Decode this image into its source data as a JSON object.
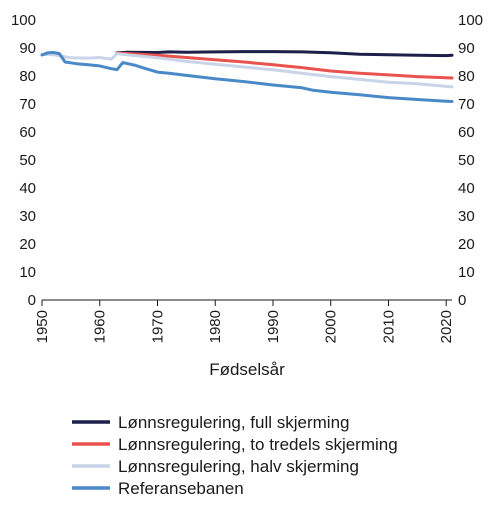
{
  "chart_data": {
    "type": "line",
    "title": "",
    "xlabel": "Fødselsår",
    "ylabel": "",
    "xlim": [
      1950,
      2021
    ],
    "ylim": [
      0,
      100
    ],
    "x_ticks": [
      1950,
      1960,
      1970,
      1980,
      1990,
      2000,
      2010,
      2020
    ],
    "y_ticks": [
      0,
      10,
      20,
      30,
      40,
      50,
      60,
      70,
      80,
      90,
      100
    ],
    "y_ticks_right": true,
    "grid": false,
    "legend_position": "bottom",
    "series": [
      {
        "name": "Lønnsregulering, full skjerming",
        "color": "#1b1f4a",
        "points": [
          [
            1963,
            88.3
          ],
          [
            1965,
            88.5
          ],
          [
            1970,
            88.4
          ],
          [
            1972,
            88.6
          ],
          [
            1975,
            88.5
          ],
          [
            1980,
            88.6
          ],
          [
            1985,
            88.7
          ],
          [
            1990,
            88.7
          ],
          [
            1995,
            88.6
          ],
          [
            2000,
            88.3
          ],
          [
            2005,
            87.8
          ],
          [
            2010,
            87.6
          ],
          [
            2015,
            87.4
          ],
          [
            2020,
            87.3
          ],
          [
            2021,
            87.4
          ]
        ]
      },
      {
        "name": "Lønnsregulering, to tredels skjerming",
        "color": "#e8534f",
        "points": [
          [
            1963,
            88.2
          ],
          [
            1965,
            88.0
          ],
          [
            1970,
            87.4
          ],
          [
            1975,
            86.6
          ],
          [
            1980,
            85.8
          ],
          [
            1985,
            85.0
          ],
          [
            1990,
            84.0
          ],
          [
            1995,
            83.0
          ],
          [
            2000,
            81.8
          ],
          [
            2005,
            81.0
          ],
          [
            2010,
            80.4
          ],
          [
            2015,
            79.8
          ],
          [
            2020,
            79.4
          ],
          [
            2021,
            79.3
          ]
        ]
      },
      {
        "name": "Lønnsregulering, halv skjerming",
        "color": "#c8d4e8",
        "points": [
          [
            1950,
            87.8
          ],
          [
            1952,
            87.6
          ],
          [
            1955,
            86.5
          ],
          [
            1958,
            86.4
          ],
          [
            1960,
            86.6
          ],
          [
            1962,
            86.0
          ],
          [
            1963,
            88.0
          ],
          [
            1965,
            87.5
          ],
          [
            1970,
            86.5
          ],
          [
            1975,
            85.2
          ],
          [
            1980,
            84.2
          ],
          [
            1985,
            83.2
          ],
          [
            1990,
            82.2
          ],
          [
            1995,
            81.0
          ],
          [
            2000,
            79.8
          ],
          [
            2005,
            78.8
          ],
          [
            2010,
            77.8
          ],
          [
            2015,
            77.2
          ],
          [
            2020,
            76.3
          ],
          [
            2021,
            76.1
          ]
        ]
      },
      {
        "name": "Referansebanen",
        "color": "#4a89c8",
        "points": [
          [
            1950,
            87.5
          ],
          [
            1951,
            88.3
          ],
          [
            1952,
            88.4
          ],
          [
            1953,
            88.0
          ],
          [
            1954,
            85.0
          ],
          [
            1956,
            84.4
          ],
          [
            1958,
            84.0
          ],
          [
            1960,
            83.6
          ],
          [
            1962,
            82.6
          ],
          [
            1963,
            82.3
          ],
          [
            1964,
            84.8
          ],
          [
            1966,
            83.9
          ],
          [
            1968,
            82.6
          ],
          [
            1970,
            81.4
          ],
          [
            1972,
            81.0
          ],
          [
            1975,
            80.2
          ],
          [
            1980,
            79.0
          ],
          [
            1985,
            78.0
          ],
          [
            1990,
            76.8
          ],
          [
            1995,
            75.8
          ],
          [
            1997,
            74.9
          ],
          [
            2000,
            74.2
          ],
          [
            2005,
            73.3
          ],
          [
            2010,
            72.3
          ],
          [
            2015,
            71.6
          ],
          [
            2020,
            71.0
          ],
          [
            2021,
            70.9
          ]
        ]
      }
    ]
  }
}
